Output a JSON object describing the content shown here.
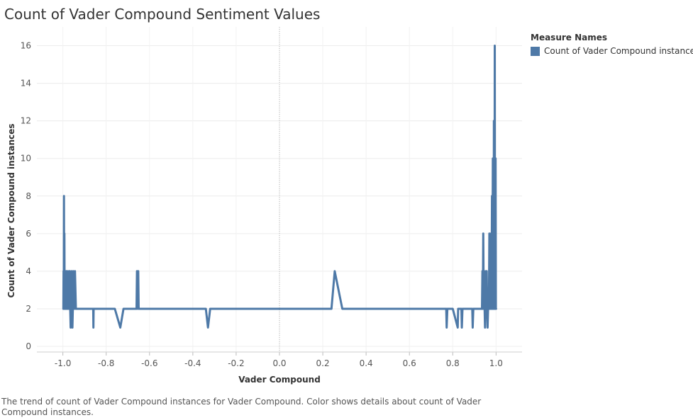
{
  "title": "Count of Vader Compound Sentiment Values",
  "caption": "The trend of count of Vader Compound instances for Vader Compound.  Color shows details about count of Vader Compound instances.",
  "legend": {
    "title": "Measure Names",
    "items": [
      {
        "label": "Count of Vader Compound instances",
        "color": "#4e79a7"
      }
    ]
  },
  "chart_data": {
    "type": "line",
    "title": "Count of Vader Compound Sentiment Values",
    "xlabel": "Vader Compound",
    "ylabel": "Count of Vader Compound instances",
    "xlim": [
      -1.12,
      1.12
    ],
    "ylim": [
      -0.3,
      17
    ],
    "xticks": [
      "-1.0",
      "-0.8",
      "-0.6",
      "-0.4",
      "-0.2",
      "0.0",
      "0.2",
      "0.4",
      "0.6",
      "0.8",
      "1.0"
    ],
    "yticks": [
      "0",
      "2",
      "4",
      "6",
      "8",
      "10",
      "12",
      "14",
      "16"
    ],
    "grid": true,
    "zero_line": "dotted",
    "legend_position": "right",
    "series": [
      {
        "name": "Count of Vader Compound instances",
        "color": "#4e79a7",
        "x": [
          -0.998,
          -0.997,
          -0.996,
          -0.995,
          -0.994,
          -0.993,
          -0.992,
          -0.991,
          -0.99,
          -0.989,
          -0.988,
          -0.986,
          -0.985,
          -0.983,
          -0.982,
          -0.98,
          -0.978,
          -0.976,
          -0.974,
          -0.972,
          -0.97,
          -0.968,
          -0.966,
          -0.964,
          -0.962,
          -0.96,
          -0.958,
          -0.956,
          -0.954,
          -0.952,
          -0.95,
          -0.948,
          -0.946,
          -0.944,
          -0.94,
          -0.938,
          -0.935,
          -0.86,
          -0.859,
          -0.858,
          -0.76,
          -0.735,
          -0.72,
          -0.68,
          -0.66,
          -0.658,
          -0.655,
          -0.652,
          -0.65,
          -0.34,
          -0.33,
          -0.32,
          0.24,
          0.255,
          0.29,
          0.77,
          0.772,
          0.775,
          0.78,
          0.8,
          0.823,
          0.825,
          0.84,
          0.842,
          0.845,
          0.89,
          0.892,
          0.895,
          0.935,
          0.937,
          0.939,
          0.941,
          0.943,
          0.945,
          0.947,
          0.949,
          0.951,
          0.953,
          0.955,
          0.957,
          0.959,
          0.961,
          0.963,
          0.965,
          0.967,
          0.969,
          0.971,
          0.973,
          0.975,
          0.977,
          0.979,
          0.981,
          0.983,
          0.985,
          0.987,
          0.988,
          0.989,
          0.99,
          0.991,
          0.992,
          0.993,
          0.994,
          0.995,
          0.996,
          0.997,
          0.998,
          0.999,
          1.0
        ],
        "y": [
          2,
          4,
          2,
          8,
          2,
          6,
          2,
          4,
          2,
          4,
          2,
          3,
          2,
          4,
          2,
          4,
          2,
          3,
          2,
          4,
          2,
          4,
          2,
          1,
          2,
          4,
          2,
          1,
          2,
          4,
          2,
          3,
          2,
          4,
          2,
          2,
          2,
          2,
          1,
          2,
          2,
          1,
          2,
          2,
          2,
          4,
          2,
          4,
          2,
          2,
          1,
          2,
          2,
          4,
          2,
          2,
          1,
          2,
          2,
          2,
          1,
          2,
          2,
          1,
          2,
          2,
          1,
          2,
          2,
          4,
          2,
          6,
          2,
          4,
          2,
          1,
          2,
          4,
          2,
          4,
          2,
          1,
          2,
          3,
          2,
          6,
          2,
          4,
          2,
          6,
          2,
          8,
          2,
          10,
          2,
          6,
          2,
          12,
          2,
          10,
          2,
          16,
          2,
          8,
          2,
          10,
          2,
          2
        ]
      }
    ]
  }
}
